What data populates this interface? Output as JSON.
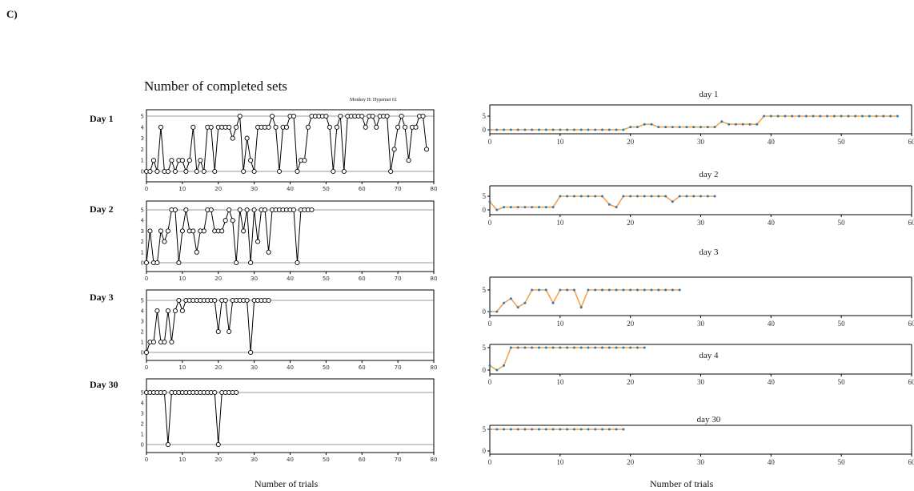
{
  "panel_label": "C)",
  "left_title": "Number of completed sets",
  "monkey_label": "Monkey H: Hypernet 61",
  "left_xlabel": "Number of trials",
  "right_xlabel": "Number of trials",
  "colors": {
    "orange": "#f4a24a",
    "blue": "#2c7bb6",
    "black": "#000000"
  },
  "chart_data": [
    {
      "type": "line",
      "panel": "left",
      "day_label": "Day 1",
      "xlim": [
        0,
        80
      ],
      "ylim": [
        0,
        5
      ],
      "xticks": [
        0,
        10,
        20,
        30,
        40,
        50,
        60,
        70,
        80
      ],
      "yticks": [
        0,
        1,
        2,
        3,
        4,
        5
      ],
      "x": [
        0,
        1,
        2,
        3,
        4,
        5,
        6,
        7,
        8,
        9,
        10,
        11,
        12,
        13,
        14,
        15,
        16,
        17,
        18,
        19,
        20,
        21,
        22,
        23,
        24,
        25,
        26,
        27,
        28,
        29,
        30,
        31,
        32,
        33,
        34,
        35,
        36,
        37,
        38,
        39,
        40,
        41,
        42,
        43,
        44,
        45,
        46,
        47,
        48,
        49,
        50,
        51,
        52,
        53,
        54,
        55,
        56,
        57,
        58,
        59,
        60,
        61,
        62,
        63,
        64,
        65,
        66,
        67,
        68,
        69,
        70,
        71,
        72,
        73,
        74,
        75,
        76,
        77,
        78
      ],
      "values": [
        0,
        0,
        1,
        0,
        4,
        0,
        0,
        1,
        0,
        1,
        1,
        0,
        1,
        4,
        0,
        1,
        0,
        4,
        4,
        0,
        4,
        4,
        4,
        4,
        3,
        4,
        5,
        0,
        3,
        1,
        0,
        4,
        4,
        4,
        4,
        5,
        4,
        0,
        4,
        4,
        5,
        5,
        0,
        1,
        1,
        4,
        5,
        5,
        5,
        5,
        5,
        4,
        0,
        4,
        5,
        0,
        5,
        5,
        5,
        5,
        5,
        4,
        5,
        5,
        4,
        5,
        5,
        5,
        0,
        2,
        4,
        5,
        4,
        1,
        4,
        4,
        5,
        5,
        2
      ]
    },
    {
      "type": "line",
      "panel": "left",
      "day_label": "Day 2",
      "xlim": [
        0,
        80
      ],
      "ylim": [
        0,
        5
      ],
      "xticks": [
        0,
        10,
        20,
        30,
        40,
        50,
        60,
        70,
        80
      ],
      "yticks": [
        0,
        1,
        2,
        3,
        4,
        5
      ],
      "x": [
        0,
        1,
        2,
        3,
        4,
        5,
        6,
        7,
        8,
        9,
        10,
        11,
        12,
        13,
        14,
        15,
        16,
        17,
        18,
        19,
        20,
        21,
        22,
        23,
        24,
        25,
        26,
        27,
        28,
        29,
        30,
        31,
        32,
        33,
        34,
        35,
        36,
        37,
        38,
        39,
        40,
        41,
        42,
        43,
        44,
        45,
        46
      ],
      "values": [
        0,
        3,
        0,
        0,
        3,
        2,
        3,
        5,
        5,
        0,
        3,
        5,
        3,
        3,
        1,
        3,
        3,
        5,
        5,
        3,
        3,
        3,
        4,
        5,
        4,
        0,
        5,
        3,
        5,
        0,
        5,
        2,
        5,
        5,
        1,
        5,
        5,
        5,
        5,
        5,
        5,
        5,
        0,
        5,
        5,
        5,
        5
      ]
    },
    {
      "type": "line",
      "panel": "left",
      "day_label": "Day 3",
      "xlim": [
        0,
        80
      ],
      "ylim": [
        0,
        5
      ],
      "xticks": [
        0,
        10,
        20,
        30,
        40,
        50,
        60,
        70,
        80
      ],
      "yticks": [
        0,
        1,
        2,
        3,
        4,
        5
      ],
      "x": [
        0,
        1,
        2,
        3,
        4,
        5,
        6,
        7,
        8,
        9,
        10,
        11,
        12,
        13,
        14,
        15,
        16,
        17,
        18,
        19,
        20,
        21,
        22,
        23,
        24,
        25,
        26,
        27,
        28,
        29,
        30,
        31,
        32,
        33,
        34
      ],
      "values": [
        0,
        1,
        1,
        4,
        1,
        1,
        4,
        1,
        4,
        5,
        4,
        5,
        5,
        5,
        5,
        5,
        5,
        5,
        5,
        5,
        2,
        5,
        5,
        2,
        5,
        5,
        5,
        5,
        5,
        0,
        5,
        5,
        5,
        5,
        5
      ]
    },
    {
      "type": "line",
      "panel": "left",
      "day_label": "Day 30",
      "xlim": [
        0,
        80
      ],
      "ylim": [
        0,
        5
      ],
      "xticks": [
        0,
        10,
        20,
        30,
        40,
        50,
        60,
        70,
        80
      ],
      "yticks": [
        0,
        1,
        2,
        3,
        4,
        5
      ],
      "x": [
        0,
        1,
        2,
        3,
        4,
        5,
        6,
        7,
        8,
        9,
        10,
        11,
        12,
        13,
        14,
        15,
        16,
        17,
        18,
        19,
        20,
        21,
        22,
        23,
        24,
        25
      ],
      "values": [
        5,
        5,
        5,
        5,
        5,
        5,
        0,
        5,
        5,
        5,
        5,
        5,
        5,
        5,
        5,
        5,
        5,
        5,
        5,
        5,
        0,
        5,
        5,
        5,
        5,
        5
      ]
    },
    {
      "type": "line",
      "panel": "right",
      "title": "day 1",
      "xlim": [
        0,
        60
      ],
      "ylim": [
        0,
        5
      ],
      "xticks": [
        0,
        10,
        20,
        30,
        40,
        50,
        60
      ],
      "yticks": [
        0,
        5
      ],
      "values": [
        0,
        0,
        0,
        0,
        0,
        0,
        0,
        0,
        0,
        0,
        0,
        0,
        0,
        0,
        0,
        0,
        0,
        0,
        0,
        0,
        1,
        1,
        2,
        2,
        1,
        1,
        1,
        1,
        1,
        1,
        1,
        1,
        1,
        3,
        2,
        2,
        2,
        2,
        2,
        5,
        5,
        5,
        5,
        5,
        5,
        5,
        5,
        5,
        5,
        5,
        5,
        5,
        5,
        5,
        5,
        5,
        5,
        5,
        5
      ]
    },
    {
      "type": "line",
      "panel": "right",
      "title": "day 2",
      "xlim": [
        0,
        60
      ],
      "ylim": [
        0,
        5
      ],
      "xticks": [
        0,
        10,
        20,
        30,
        40,
        50,
        60
      ],
      "yticks": [
        0,
        5
      ],
      "values": [
        3,
        0,
        1,
        1,
        1,
        1,
        1,
        1,
        1,
        1,
        5,
        5,
        5,
        5,
        5,
        5,
        5,
        2,
        1,
        5,
        5,
        5,
        5,
        5,
        5,
        5,
        3,
        5,
        5,
        5,
        5,
        5,
        5
      ]
    },
    {
      "type": "line",
      "panel": "right",
      "title": "day 3",
      "xlim": [
        0,
        60
      ],
      "ylim": [
        0,
        5
      ],
      "xticks": [
        0,
        10,
        20,
        30,
        40,
        50,
        60
      ],
      "yticks": [
        0,
        5
      ],
      "values": [
        0,
        0,
        2,
        3,
        1,
        2,
        5,
        5,
        5,
        2,
        5,
        5,
        5,
        1,
        5,
        5,
        5,
        5,
        5,
        5,
        5,
        5,
        5,
        5,
        5,
        5,
        5,
        5
      ]
    },
    {
      "type": "line",
      "panel": "right",
      "title": "day 4",
      "xlim": [
        0,
        60
      ],
      "ylim": [
        0,
        5
      ],
      "xticks": [
        0,
        10,
        20,
        30,
        40,
        50,
        60
      ],
      "yticks": [
        0,
        5
      ],
      "values": [
        1,
        0,
        1,
        5,
        5,
        5,
        5,
        5,
        5,
        5,
        5,
        5,
        5,
        5,
        5,
        5,
        5,
        5,
        5,
        5,
        5,
        5,
        5
      ]
    },
    {
      "type": "line",
      "panel": "right",
      "title": "day 30",
      "xlim": [
        0,
        60
      ],
      "ylim": [
        0,
        5
      ],
      "xticks": [
        0,
        10,
        20,
        30,
        40,
        50,
        60
      ],
      "yticks": [
        0,
        5
      ],
      "values": [
        5,
        5,
        5,
        5,
        5,
        5,
        5,
        5,
        5,
        5,
        5,
        5,
        5,
        5,
        5,
        5,
        5,
        5,
        5,
        5
      ]
    }
  ]
}
